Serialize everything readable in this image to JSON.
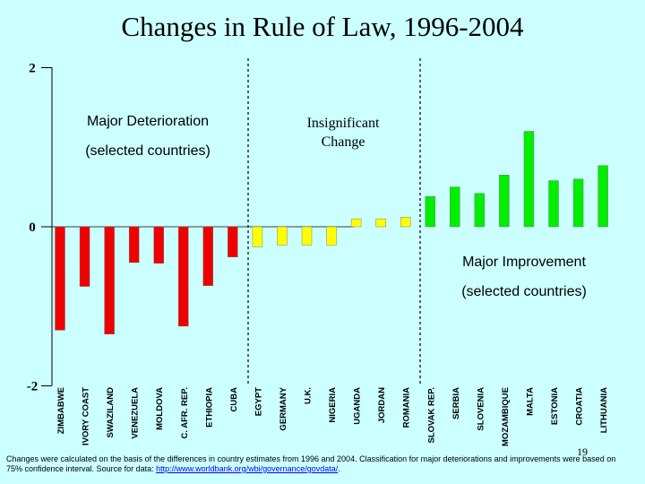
{
  "title": "Changes in Rule of Law, 1996-2004",
  "page_number": "19",
  "footnote": {
    "text": "Changes were calculated on the basis of the differences in country estimates from 1996 and 2004. Classification for major deteriorations and improvements were based on 75% confidence interval. Source for data: ",
    "link_text": "http://www.worldbank.org/wbi/governance/govdata/",
    "end": "."
  },
  "colors": {
    "background": "#CCFFFF",
    "deterioration": "#EE0000",
    "insignificant": "#FFFF00",
    "improvement": "#00EE00"
  },
  "chart_data": {
    "type": "bar",
    "title": "Changes in Rule of Law, 1996-2004",
    "ylim": [
      -2,
      2
    ],
    "yticks": [
      "2",
      "0",
      "-2"
    ],
    "grid": false,
    "group_labels": [
      {
        "group": "deterioration",
        "lines": [
          "Major Deterioration",
          "(selected countries)"
        ]
      },
      {
        "group": "insignificant",
        "lines": [
          "Insignificant",
          "Change"
        ]
      },
      {
        "group": "improvement",
        "lines": [
          "Major Improvement",
          "(selected countries)"
        ]
      }
    ],
    "categories": [
      "ZIMBABWE",
      "IVORY COAST",
      "SWAZILAND",
      "VENEZUELA",
      "MOLDOVA",
      "C. AFR. REP.",
      "ETHIOPIA",
      "CUBA",
      "EGYPT",
      "GERMANY",
      "U.K.",
      "NIGERIA",
      "UGANDA",
      "JORDAN",
      "ROMANIA",
      "SLOVAK REP.",
      "SERBIA",
      "SLOVENIA",
      "MOZAMBIQUE",
      "MALTA",
      "ESTONIA",
      "CROATIA",
      "LITHUANIA"
    ],
    "values": [
      -1.3,
      -0.75,
      -1.35,
      -0.45,
      -0.46,
      -1.25,
      -0.74,
      -0.38,
      -0.25,
      -0.23,
      -0.23,
      -0.23,
      0.1,
      0.1,
      0.12,
      0.38,
      0.5,
      0.42,
      0.65,
      1.2,
      0.58,
      0.6,
      0.77
    ],
    "groups": [
      "deterioration",
      "deterioration",
      "deterioration",
      "deterioration",
      "deterioration",
      "deterioration",
      "deterioration",
      "deterioration",
      "insignificant",
      "insignificant",
      "insignificant",
      "insignificant",
      "insignificant",
      "insignificant",
      "insignificant",
      "improvement",
      "improvement",
      "improvement",
      "improvement",
      "improvement",
      "improvement",
      "improvement",
      "improvement"
    ]
  }
}
